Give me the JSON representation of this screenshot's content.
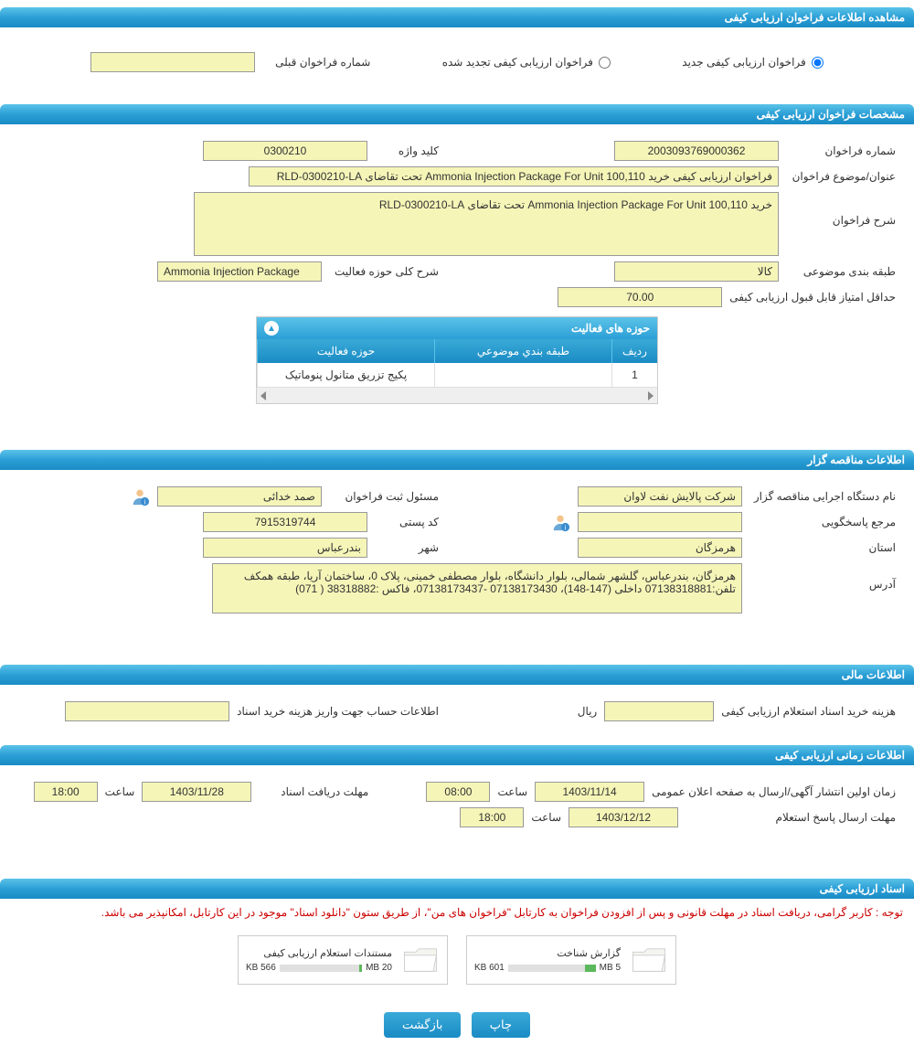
{
  "headers": {
    "view_info": "مشاهده اطلاعات فراخوان ارزیابی کیفی",
    "spec": "مشخصات فراخوان ارزیابی کیفی",
    "tenderer": "اطلاعات مناقصه گزار",
    "financial": "اطلاعات مالی",
    "timing": "اطلاعات زمانی ارزیابی کیفی",
    "documents": "اسناد ارزیابی کیفی"
  },
  "type_select": {
    "opt_new": "فراخوان ارزیابی کیفی جدید",
    "opt_renew": "فراخوان ارزیابی کیفی تجدید شده",
    "prev_num_label": "شماره فراخوان قبلی",
    "prev_num": ""
  },
  "spec": {
    "call_num_label": "شماره فراخوان",
    "call_num": "2003093769000362",
    "keyword_label": "کلید واژه",
    "keyword": "0300210",
    "title_label": "عنوان/موضوع فراخوان",
    "title": "فراخوان ارزیابی کیفی خرید Ammonia Injection Package For Unit 100,110 تحت تقاضای RLD-0300210-LA",
    "desc_label": "شرح فراخوان",
    "desc": "خرید Ammonia Injection Package For Unit 100,110 تحت تقاضای RLD-0300210-LA",
    "category_label": "طبقه بندی موضوعی",
    "category": "کالا",
    "scope_label": "شرح کلی حوزه فعالیت",
    "scope": "Ammonia Injection Package",
    "min_score_label": "حداقل امتیاز قابل قبول ارزیابی کیفی",
    "min_score": "70.00"
  },
  "activity_table": {
    "title": "حوزه های فعالیت",
    "col_idx": "ردیف",
    "col_cat": "طبقه بندي موضوعي",
    "col_act": "حوزه فعالیت",
    "rows": [
      {
        "idx": "1",
        "cat": "",
        "act": "پکیج تزریق متانول پنوماتیک"
      }
    ]
  },
  "tenderer": {
    "org_label": "نام دستگاه اجرایی مناقصه گزار",
    "org": "شرکت پالایش نفت لاوان",
    "responsible_label": "مسئول ثبت فراخوان",
    "responsible": "صمد خدائی",
    "contact_label": "مرجع پاسخگویی",
    "contact": "",
    "postal_label": "کد پستی",
    "postal": "7915319744",
    "province_label": "استان",
    "province": "هرمزگان",
    "city_label": "شهر",
    "city": "بندرعباس",
    "address_label": "آدرس",
    "address": "هرمزگان، بندرعباس، گلشهر شمالی، بلوار دانشگاه، بلوار مصطفی خمینی، پلاک 0، ساختمان آریا، طبقه همکف تلفن:07138318881 داخلی (147-148)، 07138173430 -07138173437، فاکس :38318882 ( 071)"
  },
  "financial": {
    "cost_label": "هزینه خرید اسناد استعلام ارزیابی کیفی",
    "cost": "",
    "currency": "ریال",
    "account_label": "اطلاعات حساب جهت واریز هزینه خرید اسناد",
    "account": ""
  },
  "timing": {
    "publish_label": "زمان اولین انتشار آگهی/ارسال به صفحه اعلان عمومی",
    "publish_date": "1403/11/14",
    "publish_time": "08:00",
    "receive_label": "مهلت دریافت اسناد",
    "receive_date": "1403/11/28",
    "receive_time": "18:00",
    "reply_label": "مهلت ارسال پاسخ استعلام",
    "reply_date": "1403/12/12",
    "reply_time": "18:00",
    "hour_label": "ساعت"
  },
  "documents": {
    "notice": "توجه : کاربر گرامی، دریافت اسناد در مهلت قانونی و پس از افزودن فراخوان به کارتابل \"فراخوان های من\"، از طریق ستون \"دانلود اسناد\" موجود در این کارتابل، امکانپذیر می باشد.",
    "doc1_title": "گزارش شناخت",
    "doc1_size": "601 KB",
    "doc1_max": "5 MB",
    "doc1_pct": 12,
    "doc2_title": "مستندات استعلام ارزیابی کیفی",
    "doc2_size": "566 KB",
    "doc2_max": "20 MB",
    "doc2_pct": 3
  },
  "buttons": {
    "print": "چاپ",
    "back": "بازگشت"
  },
  "colors": {
    "header_grad_top": "#5bc3e8",
    "header_grad_bot": "#1a8bc4",
    "field_bg": "#f5f5b8",
    "notice": "#cc0000"
  }
}
